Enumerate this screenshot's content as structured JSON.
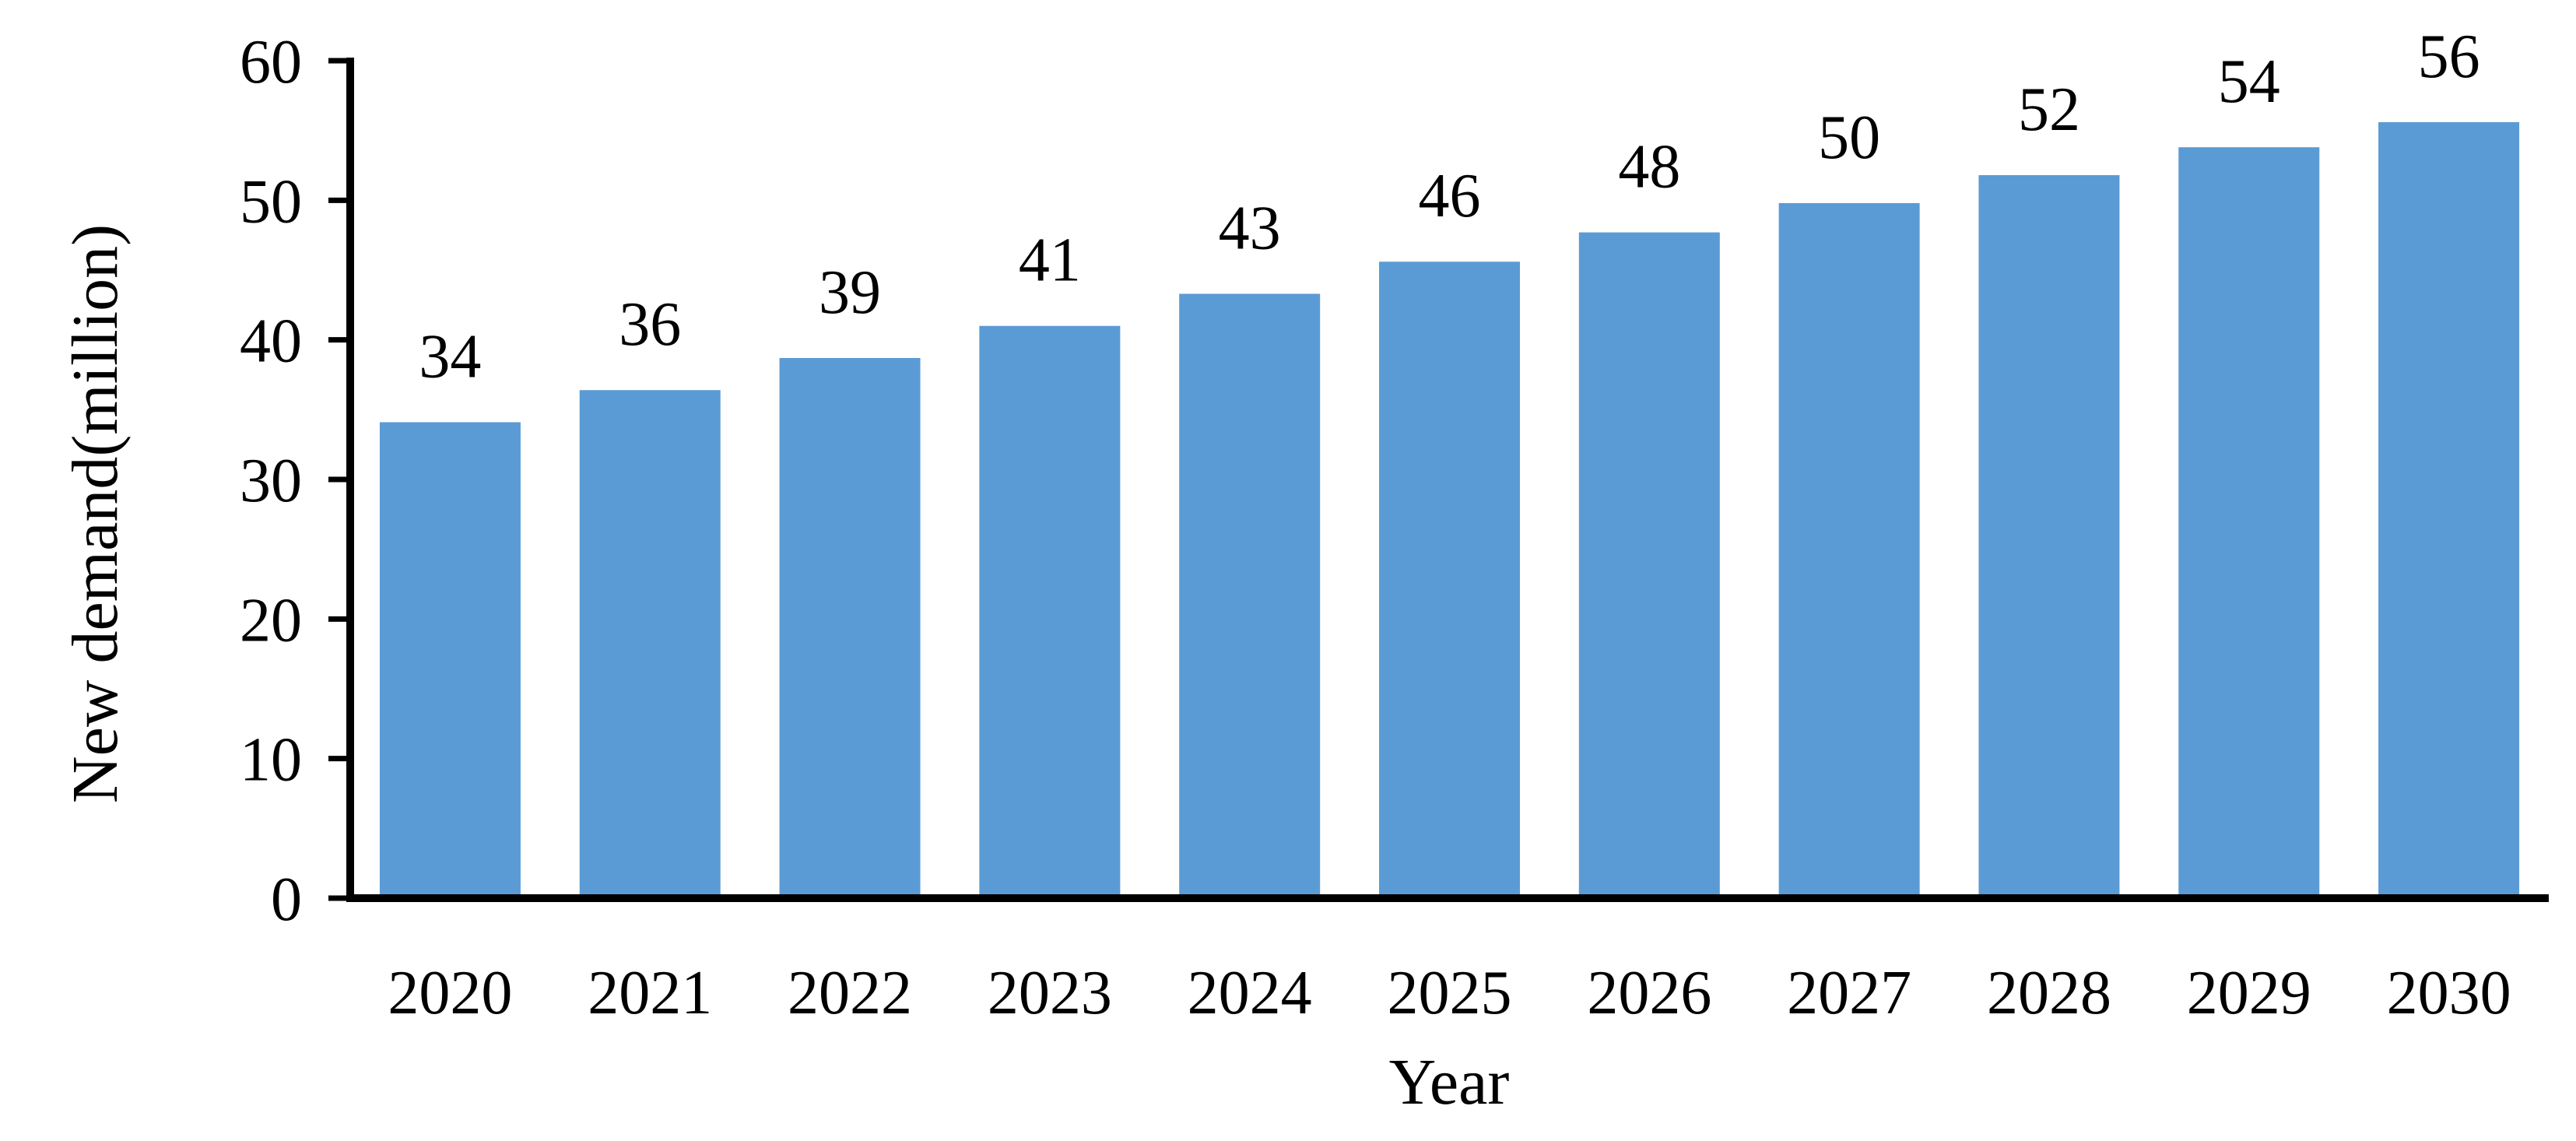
{
  "chart_data": {
    "type": "bar",
    "title": "",
    "xlabel": "Year",
    "ylabel": "New demand(million)",
    "categories": [
      "2020",
      "2021",
      "2022",
      "2023",
      "2024",
      "2025",
      "2026",
      "2027",
      "2028",
      "2029",
      "2030"
    ],
    "values": [
      34,
      36,
      39,
      41,
      43,
      46,
      48,
      50,
      52,
      54,
      56
    ],
    "value_labels": [
      "34",
      "36",
      "39",
      "41",
      "43",
      "46",
      "48",
      "50",
      "52",
      "54",
      "56"
    ],
    "bar_heights": [
      34.1,
      36.4,
      38.7,
      41.0,
      43.3,
      45.6,
      47.7,
      49.8,
      51.8,
      53.8,
      55.6
    ],
    "y_ticks": [
      "0",
      "10",
      "20",
      "30",
      "40",
      "50",
      "60"
    ],
    "ylim": [
      0,
      60
    ],
    "grid": "off",
    "legend": "none",
    "bar_color": "#5B9BD5",
    "axis_color": "#000000",
    "text_color": "#000000"
  }
}
